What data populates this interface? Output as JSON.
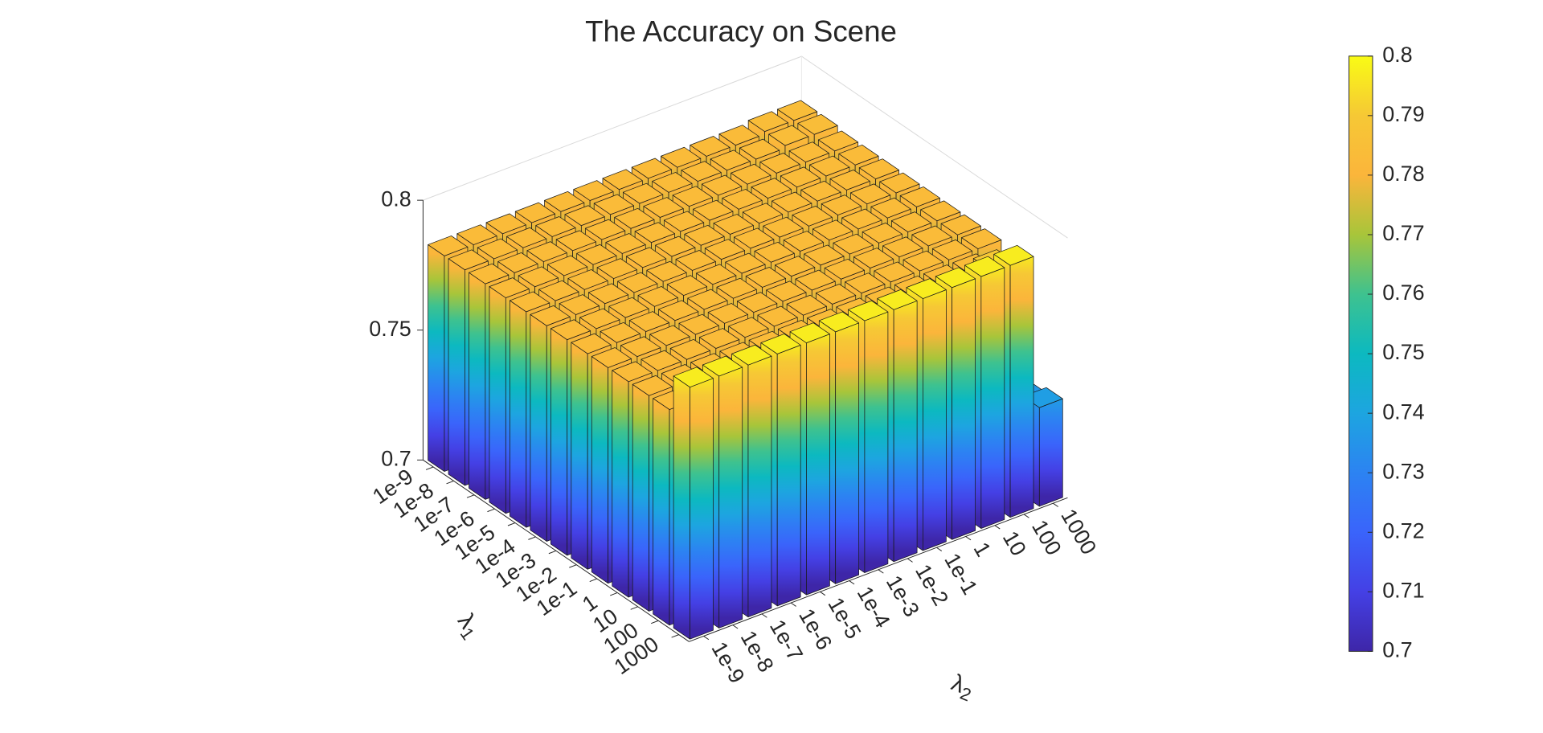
{
  "chart_data": {
    "type": "bar3",
    "title": "The Accuracy on Scene",
    "xlabel": "λ1",
    "ylabel": "λ2",
    "x_categories": [
      "1e-9",
      "1e-8",
      "1e-7",
      "1e-6",
      "1e-5",
      "1e-4",
      "1e-3",
      "1e-2",
      "1e-1",
      "1",
      "10",
      "100",
      "1000"
    ],
    "y_categories": [
      "1e-9",
      "1e-8",
      "1e-7",
      "1e-6",
      "1e-5",
      "1e-4",
      "1e-3",
      "1e-2",
      "1e-1",
      "1",
      "10",
      "100",
      "1000"
    ],
    "values": [
      [
        0.783,
        0.783,
        0.783,
        0.783,
        0.783,
        0.783,
        0.783,
        0.783,
        0.783,
        0.783,
        0.783,
        0.784,
        0.784
      ],
      [
        0.783,
        0.783,
        0.783,
        0.783,
        0.783,
        0.783,
        0.783,
        0.783,
        0.783,
        0.783,
        0.783,
        0.784,
        0.784
      ],
      [
        0.783,
        0.783,
        0.783,
        0.783,
        0.783,
        0.783,
        0.783,
        0.783,
        0.783,
        0.783,
        0.783,
        0.783,
        0.783
      ],
      [
        0.783,
        0.783,
        0.783,
        0.783,
        0.783,
        0.783,
        0.783,
        0.783,
        0.783,
        0.783,
        0.783,
        0.783,
        0.783
      ],
      [
        0.783,
        0.783,
        0.783,
        0.783,
        0.783,
        0.783,
        0.783,
        0.783,
        0.783,
        0.783,
        0.783,
        0.783,
        0.783
      ],
      [
        0.783,
        0.783,
        0.783,
        0.783,
        0.783,
        0.783,
        0.783,
        0.783,
        0.783,
        0.783,
        0.783,
        0.783,
        0.783
      ],
      [
        0.783,
        0.783,
        0.783,
        0.783,
        0.783,
        0.783,
        0.783,
        0.783,
        0.783,
        0.783,
        0.783,
        0.783,
        0.783
      ],
      [
        0.783,
        0.783,
        0.783,
        0.783,
        0.783,
        0.783,
        0.783,
        0.783,
        0.783,
        0.783,
        0.783,
        0.783,
        0.783
      ],
      [
        0.783,
        0.783,
        0.783,
        0.783,
        0.783,
        0.783,
        0.783,
        0.783,
        0.783,
        0.783,
        0.783,
        0.783,
        0.783
      ],
      [
        0.783,
        0.783,
        0.783,
        0.783,
        0.783,
        0.783,
        0.783,
        0.783,
        0.783,
        0.783,
        0.783,
        0.783,
        0.783
      ],
      [
        0.783,
        0.783,
        0.783,
        0.783,
        0.783,
        0.783,
        0.783,
        0.783,
        0.783,
        0.783,
        0.783,
        0.783,
        0.735
      ],
      [
        0.783,
        0.783,
        0.783,
        0.783,
        0.783,
        0.783,
        0.783,
        0.783,
        0.783,
        0.783,
        0.783,
        0.79,
        0.736
      ],
      [
        0.797,
        0.797,
        0.797,
        0.797,
        0.797,
        0.797,
        0.797,
        0.797,
        0.797,
        0.797,
        0.797,
        0.797,
        0.738
      ]
    ],
    "zlim": [
      0.7,
      0.8
    ],
    "zticks": [
      0.7,
      0.75,
      0.8
    ],
    "colorbar": {
      "lim": [
        0.7,
        0.8
      ],
      "ticks": [
        0.7,
        0.71,
        0.72,
        0.73,
        0.74,
        0.75,
        0.76,
        0.77,
        0.78,
        0.79,
        0.8
      ]
    },
    "colormap": [
      "#3e26a8",
      "#4440e5",
      "#3a64fb",
      "#2c83f2",
      "#1da5e0",
      "#0cb9c0",
      "#3ec28f",
      "#a8c53a",
      "#fbb53b",
      "#f6c835",
      "#f9fb15"
    ]
  }
}
